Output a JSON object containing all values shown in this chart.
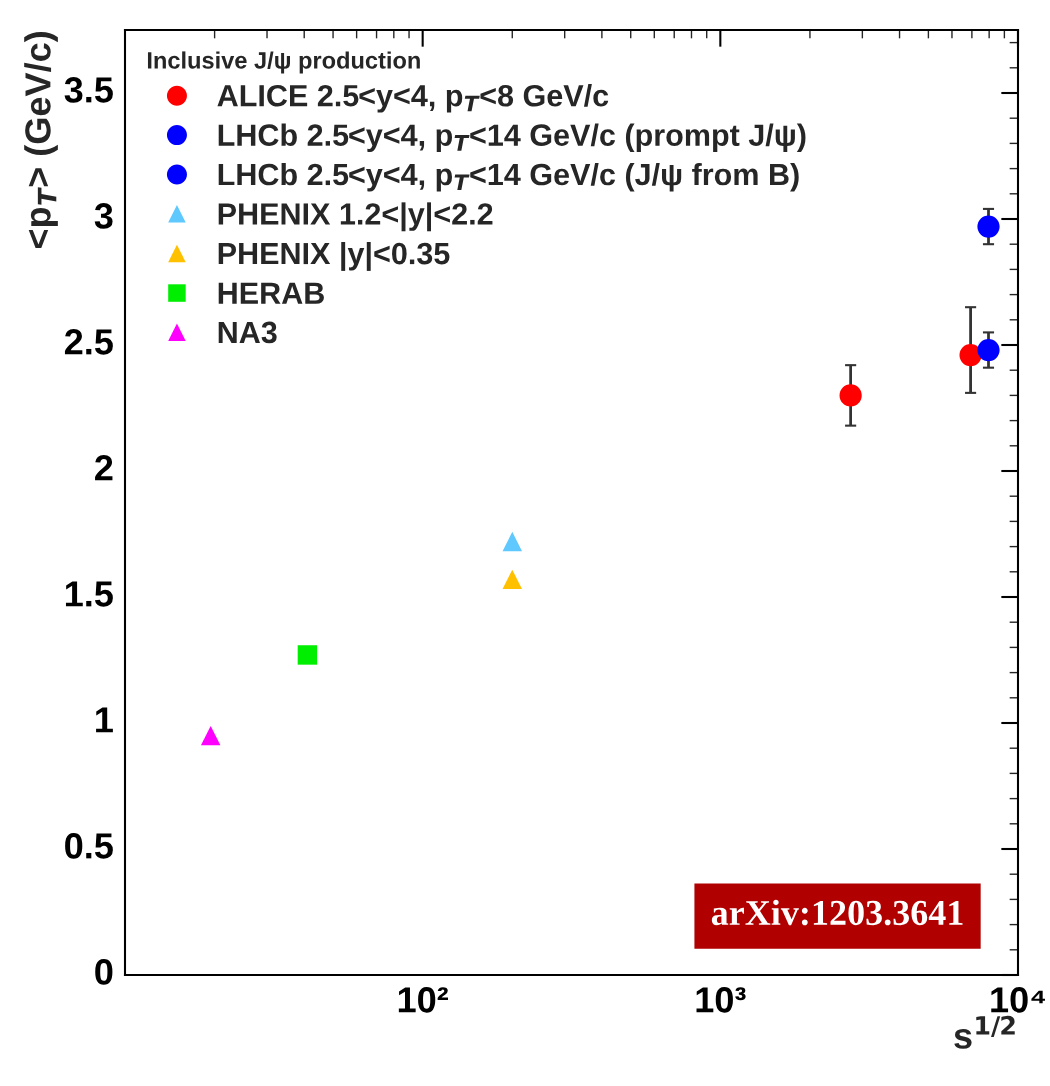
{
  "chart_data": {
    "type": "scatter",
    "legend_title": "Inclusive J/ψ production",
    "ylabel": "<p$_{T}$> (GeV/c)",
    "xlabel": "s$^{1/2}$",
    "log": "x",
    "xlim": [
      10,
      10000
    ],
    "xticks": [
      {
        "value": 100,
        "label": "10²"
      },
      {
        "value": 1000,
        "label": "10³"
      },
      {
        "value": 10000,
        "label": "10⁴"
      }
    ],
    "ylim": [
      0,
      3.75
    ],
    "yticks": [
      0,
      0.5,
      1,
      1.5,
      2,
      2.5,
      3,
      3.5
    ],
    "grid": false,
    "legend": "top left",
    "series": [
      {
        "name": "ALICE 2.5<y<4, p$_{T}$<8 GeV/c",
        "color": "#ff0000",
        "marker": "circle",
        "x": [
          2740,
          6930
        ],
        "values": [
          2.3,
          2.46
        ],
        "errors": [
          0.12,
          [
            2.31,
            2.65
          ]
        ]
      },
      {
        "name": "LHCb 2.5<y<4, p$_{T}$<14 GeV/c (prompt J/ψ)",
        "color": "#0000ff",
        "marker": "circle",
        "x": [
          7960
        ],
        "values": [
          2.48
        ],
        "errors": [
          0.07
        ]
      },
      {
        "name": "LHCb 2.5<y<4, p$_{T}$<14 GeV/c (J/ψ from B)",
        "color": "#0000ff",
        "marker": "circle",
        "x": [
          7960
        ],
        "values": [
          2.97
        ],
        "errors": [
          0.07
        ]
      },
      {
        "name": "PHENIX 1.2<|y|<2.2",
        "color": "#5ec8ff",
        "marker": "triangle",
        "x": [
          200
        ],
        "values": [
          1.72
        ]
      },
      {
        "name": "PHENIX |y|<0.35",
        "color": "#ffc000",
        "marker": "triangle",
        "x": [
          200
        ],
        "values": [
          1.57
        ]
      },
      {
        "name": "HERAB",
        "color": "#00ee00",
        "marker": "square",
        "x": [
          41.0
        ],
        "values": [
          1.27
        ]
      },
      {
        "name": "NA3",
        "color": "#ff00ff",
        "marker": "triangle",
        "x": [
          19.4
        ],
        "values": [
          0.95
        ]
      }
    ],
    "annotations": [
      "arXiv:1203.3641"
    ]
  }
}
